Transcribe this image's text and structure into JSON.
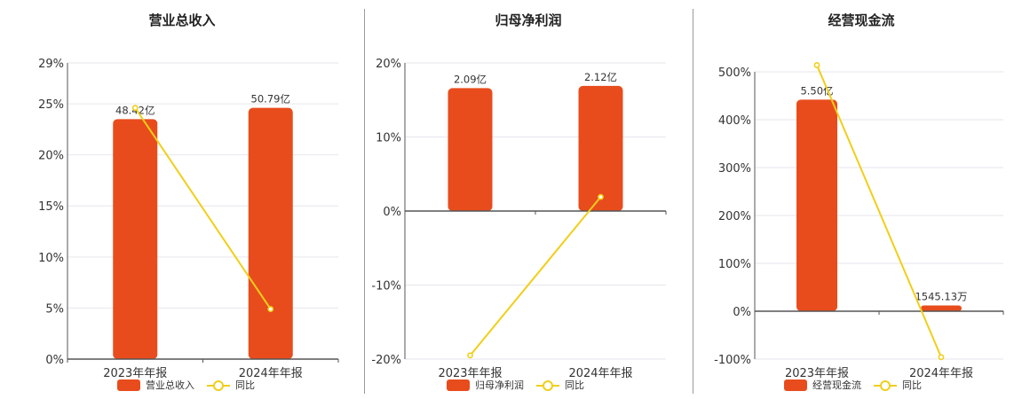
{
  "chart_data": [
    {
      "type": "bar",
      "title": "营业总收入",
      "categories": [
        "2023年年报",
        "2024年年报"
      ],
      "ylim": [
        0,
        29
      ],
      "yticks": [
        "0%",
        "5%",
        "10%",
        "15%",
        "20%",
        "25%",
        "29%"
      ],
      "ytick_values": [
        0,
        5,
        10,
        15,
        20,
        25,
        29
      ],
      "series": [
        {
          "name": "营业总收入",
          "type": "bar",
          "values": [
            23.5,
            24.6
          ],
          "labels": [
            "48.42亿",
            "50.79亿"
          ],
          "color": "#e84c1c"
        },
        {
          "name": "同比",
          "type": "line",
          "values": [
            24.6,
            4.9
          ],
          "color": "#f0cf1a"
        }
      ],
      "grid": true,
      "legend": "bottom"
    },
    {
      "type": "bar",
      "title": "归母净利润",
      "categories": [
        "2023年年报",
        "2024年年报"
      ],
      "ylim": [
        -20,
        20
      ],
      "yticks": [
        "-20%",
        "-10%",
        "0%",
        "10%",
        "20%"
      ],
      "ytick_values": [
        -20,
        -10,
        0,
        10,
        20
      ],
      "series": [
        {
          "name": "归母净利润",
          "type": "bar",
          "values": [
            16.6,
            16.9
          ],
          "labels": [
            "2.09亿",
            "2.12亿"
          ],
          "color": "#e84c1c"
        },
        {
          "name": "同比",
          "type": "line",
          "values": [
            -19.5,
            1.9
          ],
          "color": "#f0cf1a"
        }
      ],
      "grid": true,
      "legend": "bottom"
    },
    {
      "type": "bar",
      "title": "经营现金流",
      "categories": [
        "2023年年报",
        "2024年年报"
      ],
      "ylim": [
        -100,
        500
      ],
      "yticks": [
        "-100%",
        "0%",
        "100%",
        "200%",
        "300%",
        "400%",
        "500%"
      ],
      "ytick_values": [
        -100,
        0,
        100,
        200,
        300,
        400,
        500
      ],
      "series": [
        {
          "name": "经营现金流",
          "type": "bar",
          "values": [
            442,
            12
          ],
          "labels": [
            "5.50亿",
            "1545.13万"
          ],
          "color": "#e84c1c"
        },
        {
          "name": "同比",
          "type": "line",
          "values": [
            514,
            -96
          ],
          "color": "#f0cf1a"
        }
      ],
      "grid": true,
      "legend": "bottom"
    }
  ]
}
